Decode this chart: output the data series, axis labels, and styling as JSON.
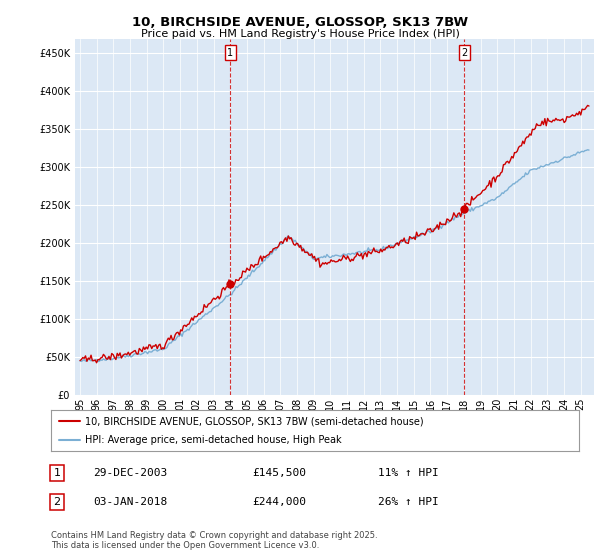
{
  "title": "10, BIRCHSIDE AVENUE, GLOSSOP, SK13 7BW",
  "subtitle": "Price paid vs. HM Land Registry's House Price Index (HPI)",
  "ytick_values": [
    0,
    50000,
    100000,
    150000,
    200000,
    250000,
    300000,
    350000,
    400000,
    450000
  ],
  "ylim": [
    0,
    468000
  ],
  "xlim_start": 1994.7,
  "xlim_end": 2025.8,
  "hpi_color": "#7bafd4",
  "price_color": "#cc0000",
  "marker1_x": 2004.0,
  "marker1_y": 145500,
  "marker2_x": 2018.02,
  "marker2_y": 244000,
  "legend_entries": [
    "10, BIRCHSIDE AVENUE, GLOSSOP, SK13 7BW (semi-detached house)",
    "HPI: Average price, semi-detached house, High Peak"
  ],
  "footer": "Contains HM Land Registry data © Crown copyright and database right 2025.\nThis data is licensed under the Open Government Licence v3.0.",
  "background_color": "#ffffff",
  "plot_bg_color": "#dce8f5"
}
